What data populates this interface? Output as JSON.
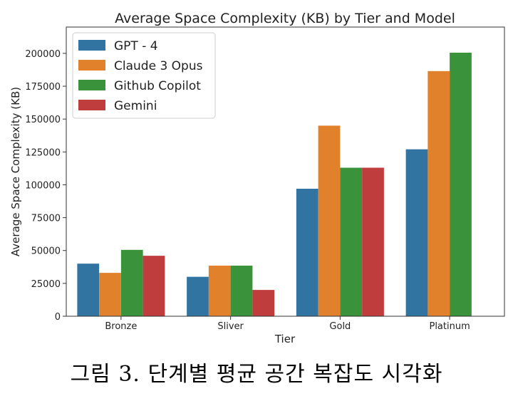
{
  "chart_data": {
    "type": "bar",
    "title": "Average Space Complexity (KB) by Tier and Model",
    "xlabel": "Tier",
    "ylabel": "Average Space Complexity (KB)",
    "categories": [
      "Bronze",
      "Sliver",
      "Gold",
      "Platinum"
    ],
    "ylim": [
      0,
      220000
    ],
    "yticks": [
      0,
      25000,
      50000,
      75000,
      100000,
      125000,
      150000,
      175000,
      200000
    ],
    "grid": false,
    "legend_position": "top-left",
    "series": [
      {
        "name": "GPT - 4",
        "color": "#3274a1",
        "values": [
          40000,
          30000,
          97000,
          127000
        ]
      },
      {
        "name": "Claude 3 Opus",
        "color": "#e1812c",
        "values": [
          33000,
          38500,
          145000,
          186500
        ]
      },
      {
        "name": "Github Copilot",
        "color": "#3a923a",
        "values": [
          50500,
          38500,
          113000,
          200500
        ]
      },
      {
        "name": "Gemini",
        "color": "#c03d3e",
        "values": [
          46000,
          20000,
          113000,
          null
        ]
      }
    ]
  },
  "caption": "그림 3. 단계별 평균 공간 복잡도 시각화"
}
